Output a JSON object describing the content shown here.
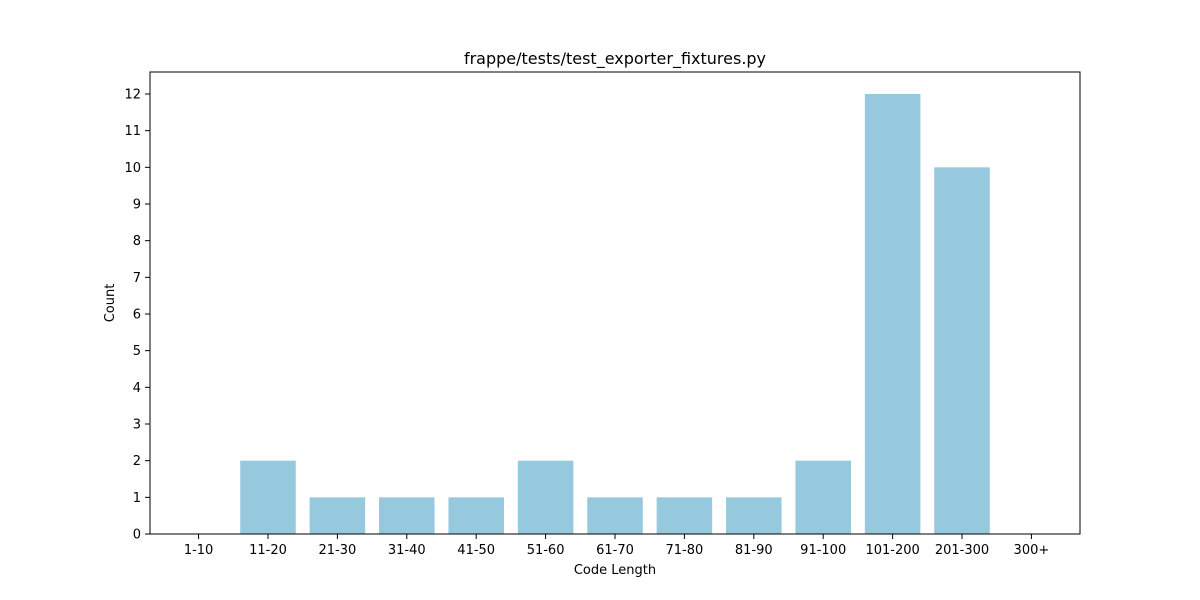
{
  "chart_data": {
    "type": "bar",
    "title": "frappe/tests/test_exporter_fixtures.py",
    "xlabel": "Code Length",
    "ylabel": "Count",
    "categories": [
      "1-10",
      "11-20",
      "21-30",
      "31-40",
      "41-50",
      "51-60",
      "61-70",
      "71-80",
      "81-90",
      "91-100",
      "101-200",
      "201-300",
      "300+"
    ],
    "values": [
      0,
      2,
      1,
      1,
      1,
      2,
      1,
      1,
      1,
      2,
      12,
      10,
      0
    ],
    "ylim": [
      0,
      12.6
    ],
    "yticks": [
      0,
      1,
      2,
      3,
      4,
      5,
      6,
      7,
      8,
      9,
      10,
      11,
      12
    ],
    "bar_color": "#96c9dd",
    "grid": false,
    "legend": "none"
  }
}
